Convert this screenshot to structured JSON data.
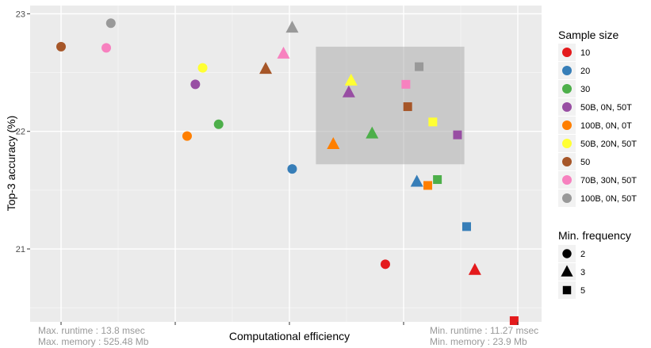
{
  "chart_data": {
    "type": "scatter",
    "title": "",
    "xlabel": "Computational efficiency",
    "ylabel": "Top-3 accuracy (%)",
    "xlim": [
      0,
      1
    ],
    "ylim": [
      20.38,
      23.07
    ],
    "y_ticks": [
      21,
      22,
      23
    ],
    "y_tick_labels": [
      "21",
      "22",
      "23"
    ],
    "grid": true,
    "x_axis_notes": {
      "left_line1": "Max. runtime : 13.8 msec",
      "left_line2": "Max. memory : 525.48 Mb",
      "right_line1": "Min. runtime : 11.27 msec",
      "right_line2": "Min. memory : 23.9 Mb"
    },
    "highlight_box": {
      "x": [
        0.558,
        0.883
      ],
      "y": [
        21.72,
        22.72
      ]
    },
    "colors": {
      "10": "#E41A1C",
      "20": "#377EB8",
      "30": "#4DAF4A",
      "50B, 0N, 50T": "#984EA3",
      "100B, 0N, 0T": "#FF7F00",
      "50B, 20N, 50T": "#FFFF33",
      "50": "#A65628",
      "70B, 30N, 50T": "#F781BF",
      "100B, 0N, 50T": "#999999"
    },
    "legend_color": {
      "title": "Sample size",
      "position": "right",
      "items": [
        "10",
        "20",
        "30",
        "50B, 0N, 50T",
        "100B, 0N, 0T",
        "50B, 20N, 50T",
        "50",
        "70B, 30N, 50T",
        "100B, 0N, 50T"
      ]
    },
    "legend_shape": {
      "title": "Min. frequency",
      "position": "right",
      "items": [
        {
          "label": "2",
          "shape": "circle"
        },
        {
          "label": "3",
          "shape": "triangle"
        },
        {
          "label": "5",
          "shape": "square"
        }
      ]
    },
    "points": [
      {
        "x": 0.0,
        "y": 22.72,
        "size": "50",
        "freq": "2"
      },
      {
        "x": 0.109,
        "y": 22.92,
        "size": "100B, 0N, 50T",
        "freq": "2"
      },
      {
        "x": 0.099,
        "y": 22.71,
        "size": "70B, 30N, 50T",
        "freq": "2"
      },
      {
        "x": 0.31,
        "y": 22.54,
        "size": "50B, 20N, 50T",
        "freq": "2"
      },
      {
        "x": 0.294,
        "y": 22.4,
        "size": "50B, 0N, 50T",
        "freq": "2"
      },
      {
        "x": 0.276,
        "y": 21.96,
        "size": "100B, 0N, 0T",
        "freq": "2"
      },
      {
        "x": 0.345,
        "y": 22.06,
        "size": "30",
        "freq": "2"
      },
      {
        "x": 0.506,
        "y": 21.68,
        "size": "20",
        "freq": "2"
      },
      {
        "x": 0.71,
        "y": 20.87,
        "size": "10",
        "freq": "2"
      },
      {
        "x": 0.506,
        "y": 22.88,
        "size": "100B, 0N, 50T",
        "freq": "3"
      },
      {
        "x": 0.448,
        "y": 22.53,
        "size": "50",
        "freq": "3"
      },
      {
        "x": 0.487,
        "y": 22.66,
        "size": "70B, 30N, 50T",
        "freq": "3"
      },
      {
        "x": 0.635,
        "y": 22.43,
        "size": "50B, 20N, 50T",
        "freq": "3"
      },
      {
        "x": 0.63,
        "y": 22.33,
        "size": "50B, 0N, 50T",
        "freq": "3"
      },
      {
        "x": 0.596,
        "y": 21.89,
        "size": "100B, 0N, 0T",
        "freq": "3"
      },
      {
        "x": 0.681,
        "y": 21.98,
        "size": "30",
        "freq": "3"
      },
      {
        "x": 0.779,
        "y": 21.57,
        "size": "20",
        "freq": "3"
      },
      {
        "x": 0.906,
        "y": 20.82,
        "size": "10",
        "freq": "3"
      },
      {
        "x": 0.784,
        "y": 22.55,
        "size": "100B, 0N, 50T",
        "freq": "5"
      },
      {
        "x": 0.755,
        "y": 22.4,
        "size": "70B, 30N, 50T",
        "freq": "5"
      },
      {
        "x": 0.759,
        "y": 22.21,
        "size": "50",
        "freq": "5"
      },
      {
        "x": 0.814,
        "y": 22.08,
        "size": "50B, 20N, 50T",
        "freq": "5"
      },
      {
        "x": 0.868,
        "y": 21.97,
        "size": "50B, 0N, 50T",
        "freq": "5"
      },
      {
        "x": 0.824,
        "y": 21.59,
        "size": "30",
        "freq": "5"
      },
      {
        "x": 0.803,
        "y": 21.54,
        "size": "100B, 0N, 0T",
        "freq": "5"
      },
      {
        "x": 0.888,
        "y": 21.19,
        "size": "20",
        "freq": "5"
      },
      {
        "x": 0.992,
        "y": 20.39,
        "size": "10",
        "freq": "5"
      }
    ]
  }
}
